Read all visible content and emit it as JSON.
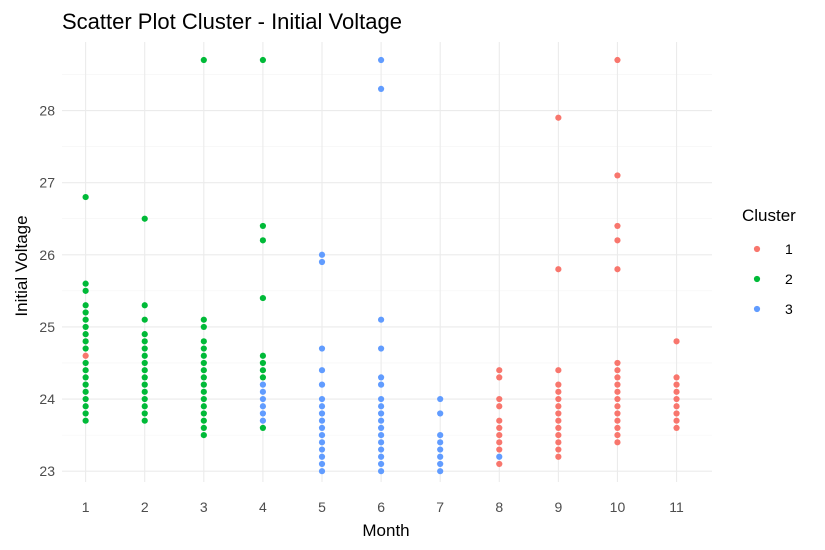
{
  "chart_data": {
    "type": "scatter",
    "title": "Scatter Plot Cluster - Initial Voltage",
    "xlabel": "Month",
    "ylabel": "Initial Voltage",
    "xlim": [
      0.6,
      11.6
    ],
    "ylim": [
      22.85,
      28.95
    ],
    "x_ticks": [
      1,
      2,
      3,
      4,
      5,
      6,
      7,
      8,
      9,
      10,
      11
    ],
    "y_ticks": [
      23,
      24,
      25,
      26,
      27,
      28
    ],
    "grid": true,
    "legend": {
      "title": "Cluster",
      "position": "right"
    },
    "series": [
      {
        "name": "1",
        "color": "#F8766D",
        "points": [
          [
            1,
            24.6
          ],
          [
            8,
            24.4
          ],
          [
            8,
            24.3
          ],
          [
            8,
            24.0
          ],
          [
            8,
            23.9
          ],
          [
            8,
            23.7
          ],
          [
            8,
            23.6
          ],
          [
            8,
            23.5
          ],
          [
            8,
            23.4
          ],
          [
            8,
            23.3
          ],
          [
            8,
            23.1
          ],
          [
            9,
            27.9
          ],
          [
            9,
            25.8
          ],
          [
            9,
            24.4
          ],
          [
            9,
            24.2
          ],
          [
            9,
            24.1
          ],
          [
            9,
            24.0
          ],
          [
            9,
            23.9
          ],
          [
            9,
            23.8
          ],
          [
            9,
            23.7
          ],
          [
            9,
            23.6
          ],
          [
            9,
            23.5
          ],
          [
            9,
            23.4
          ],
          [
            9,
            23.3
          ],
          [
            9,
            23.2
          ],
          [
            10,
            28.7
          ],
          [
            10,
            27.1
          ],
          [
            10,
            26.4
          ],
          [
            10,
            26.2
          ],
          [
            10,
            25.8
          ],
          [
            10,
            24.5
          ],
          [
            10,
            24.4
          ],
          [
            10,
            24.3
          ],
          [
            10,
            24.2
          ],
          [
            10,
            24.1
          ],
          [
            10,
            24.0
          ],
          [
            10,
            23.9
          ],
          [
            10,
            23.8
          ],
          [
            10,
            23.7
          ],
          [
            10,
            23.6
          ],
          [
            10,
            23.5
          ],
          [
            10,
            23.4
          ],
          [
            11,
            24.8
          ],
          [
            11,
            24.3
          ],
          [
            11,
            24.2
          ],
          [
            11,
            24.1
          ],
          [
            11,
            24.0
          ],
          [
            11,
            23.9
          ],
          [
            11,
            23.8
          ],
          [
            11,
            23.7
          ],
          [
            11,
            23.6
          ]
        ]
      },
      {
        "name": "2",
        "color": "#00BA38",
        "points": [
          [
            1,
            26.8
          ],
          [
            1,
            25.6
          ],
          [
            1,
            25.5
          ],
          [
            1,
            25.3
          ],
          [
            1,
            25.2
          ],
          [
            1,
            25.1
          ],
          [
            1,
            25.0
          ],
          [
            1,
            24.9
          ],
          [
            1,
            24.8
          ],
          [
            1,
            24.7
          ],
          [
            1,
            24.5
          ],
          [
            1,
            24.4
          ],
          [
            1,
            24.3
          ],
          [
            1,
            24.2
          ],
          [
            1,
            24.1
          ],
          [
            1,
            24.0
          ],
          [
            1,
            23.9
          ],
          [
            1,
            23.8
          ],
          [
            1,
            23.7
          ],
          [
            2,
            26.5
          ],
          [
            2,
            25.3
          ],
          [
            2,
            25.1
          ],
          [
            2,
            24.9
          ],
          [
            2,
            24.8
          ],
          [
            2,
            24.7
          ],
          [
            2,
            24.6
          ],
          [
            2,
            24.5
          ],
          [
            2,
            24.4
          ],
          [
            2,
            24.3
          ],
          [
            2,
            24.2
          ],
          [
            2,
            24.1
          ],
          [
            2,
            24.0
          ],
          [
            2,
            23.9
          ],
          [
            2,
            23.8
          ],
          [
            2,
            23.7
          ],
          [
            3,
            28.7
          ],
          [
            3,
            25.1
          ],
          [
            3,
            25.0
          ],
          [
            3,
            24.8
          ],
          [
            3,
            24.7
          ],
          [
            3,
            24.6
          ],
          [
            3,
            24.5
          ],
          [
            3,
            24.4
          ],
          [
            3,
            24.3
          ],
          [
            3,
            24.2
          ],
          [
            3,
            24.1
          ],
          [
            3,
            24.0
          ],
          [
            3,
            23.9
          ],
          [
            3,
            23.8
          ],
          [
            3,
            23.7
          ],
          [
            3,
            23.6
          ],
          [
            3,
            23.5
          ],
          [
            4,
            28.7
          ],
          [
            4,
            26.4
          ],
          [
            4,
            26.2
          ],
          [
            4,
            25.4
          ],
          [
            4,
            24.6
          ],
          [
            4,
            24.5
          ],
          [
            4,
            24.4
          ],
          [
            4,
            24.3
          ],
          [
            4,
            23.6
          ]
        ]
      },
      {
        "name": "3",
        "color": "#619CFF",
        "points": [
          [
            4,
            24.2
          ],
          [
            4,
            24.1
          ],
          [
            4,
            24.0
          ],
          [
            4,
            23.9
          ],
          [
            4,
            23.8
          ],
          [
            4,
            23.7
          ],
          [
            5,
            26.0
          ],
          [
            5,
            25.9
          ],
          [
            5,
            24.7
          ],
          [
            5,
            24.4
          ],
          [
            5,
            24.2
          ],
          [
            5,
            24.0
          ],
          [
            5,
            23.9
          ],
          [
            5,
            23.8
          ],
          [
            5,
            23.7
          ],
          [
            5,
            23.6
          ],
          [
            5,
            23.5
          ],
          [
            5,
            23.4
          ],
          [
            5,
            23.3
          ],
          [
            5,
            23.2
          ],
          [
            5,
            23.1
          ],
          [
            5,
            23.0
          ],
          [
            6,
            28.7
          ],
          [
            6,
            28.3
          ],
          [
            6,
            25.1
          ],
          [
            6,
            24.7
          ],
          [
            6,
            24.3
          ],
          [
            6,
            24.2
          ],
          [
            6,
            24.0
          ],
          [
            6,
            23.9
          ],
          [
            6,
            23.8
          ],
          [
            6,
            23.7
          ],
          [
            6,
            23.6
          ],
          [
            6,
            23.5
          ],
          [
            6,
            23.4
          ],
          [
            6,
            23.3
          ],
          [
            6,
            23.2
          ],
          [
            6,
            23.1
          ],
          [
            6,
            23.0
          ],
          [
            7,
            24.0
          ],
          [
            7,
            23.8
          ],
          [
            7,
            23.5
          ],
          [
            7,
            23.4
          ],
          [
            7,
            23.3
          ],
          [
            7,
            23.2
          ],
          [
            7,
            23.1
          ],
          [
            7,
            23.0
          ],
          [
            8,
            23.2
          ]
        ]
      }
    ]
  }
}
